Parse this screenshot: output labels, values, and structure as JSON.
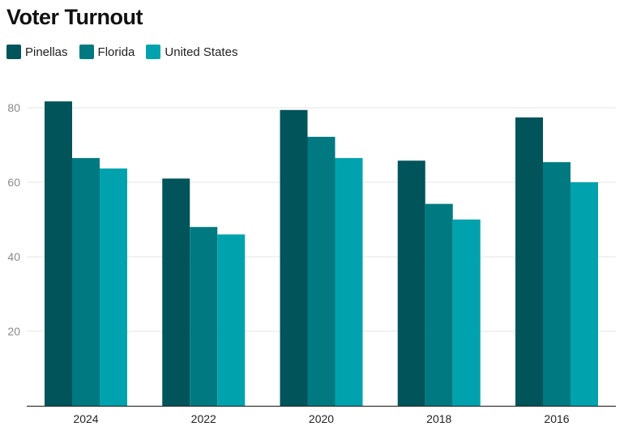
{
  "title": "Voter Turnout",
  "colors": {
    "Pinellas": "#00545a",
    "Florida": "#007a80",
    "United States": "#00a3ad",
    "gridline": "#e6e6e6",
    "axis": "#333333"
  },
  "chart_data": {
    "type": "bar",
    "title": "Voter Turnout",
    "categories": [
      "2024",
      "2022",
      "2020",
      "2018",
      "2016"
    ],
    "series": [
      {
        "name": "Pinellas",
        "values": [
          81.7,
          61.0,
          79.4,
          65.8,
          77.4
        ]
      },
      {
        "name": "Florida",
        "values": [
          66.5,
          48.0,
          72.2,
          54.2,
          65.4
        ]
      },
      {
        "name": "United States",
        "values": [
          63.7,
          46.0,
          66.5,
          50.0,
          60.0
        ]
      }
    ],
    "yticks": [
      20,
      40,
      60,
      80
    ],
    "ylim": [
      0,
      85
    ],
    "grid": true,
    "legend": "top-left",
    "xlabel": "",
    "ylabel": ""
  }
}
